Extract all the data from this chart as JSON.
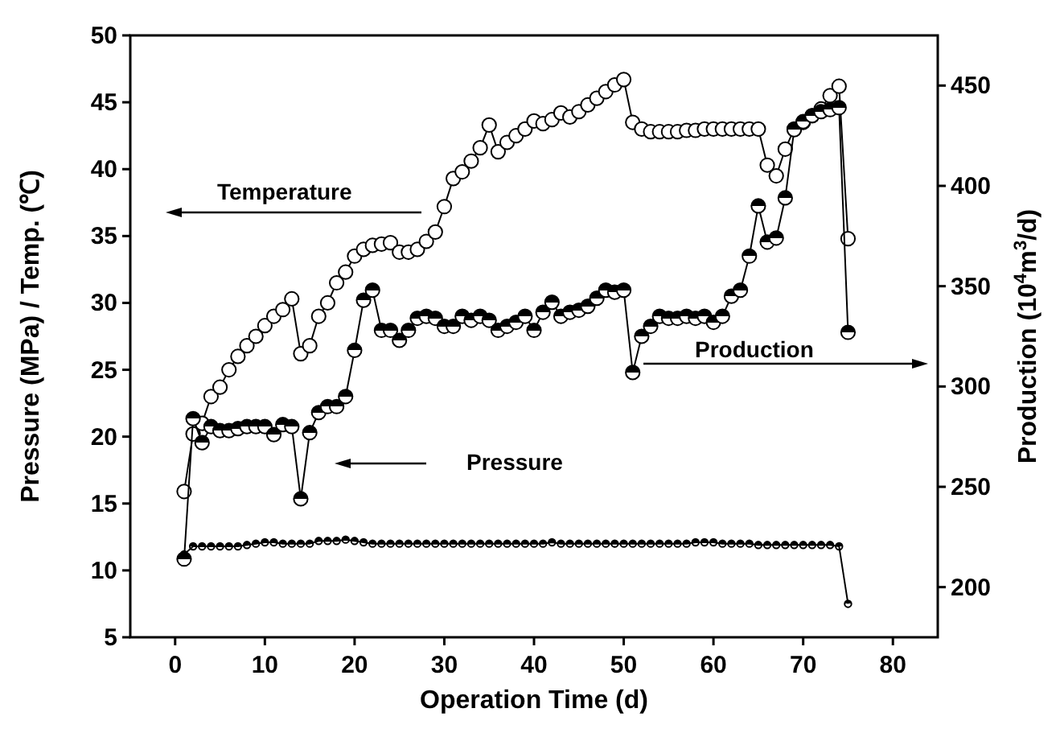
{
  "chart_data": {
    "type": "line",
    "xlabel": "Operation Time (d)",
    "ylabel": "Pressure (MPa) / Temp. (℃)",
    "y2label": "Production (10$^{4}$m$^{3}$/d)",
    "x": [
      1,
      2,
      3,
      4,
      5,
      6,
      7,
      8,
      9,
      10,
      11,
      12,
      13,
      14,
      15,
      16,
      17,
      18,
      19,
      20,
      21,
      22,
      23,
      24,
      25,
      26,
      27,
      28,
      29,
      30,
      31,
      32,
      33,
      34,
      35,
      36,
      37,
      38,
      39,
      40,
      41,
      42,
      43,
      44,
      45,
      46,
      47,
      48,
      49,
      50,
      51,
      52,
      53,
      54,
      55,
      56,
      57,
      58,
      59,
      60,
      61,
      62,
      63,
      64,
      65,
      66,
      67,
      68,
      69,
      70,
      71,
      72,
      73,
      74,
      75
    ],
    "series": [
      {
        "color": "#000000",
        "values": [
          15.9,
          20.2,
          21,
          23,
          23.7,
          25,
          26,
          26.8,
          27.5,
          28.3,
          29,
          29.5,
          30.3,
          26.2,
          26.8,
          29,
          30,
          31.5,
          32.3,
          33.5,
          34,
          34.3,
          34.4,
          34.5,
          33.8,
          33.8,
          34,
          34.6,
          35.3,
          37.2,
          39.3,
          39.8,
          40.6,
          41.6,
          43.3,
          41.3,
          42,
          42.5,
          43,
          43.6,
          43.4,
          43.7,
          44.2,
          43.9,
          44.3,
          44.8,
          45.3,
          45.8,
          46.3,
          46.7,
          43.5,
          43,
          42.8,
          42.8,
          42.8,
          42.8,
          42.9,
          42.9,
          43,
          43,
          43,
          43,
          43,
          43,
          43,
          40.3,
          39.5,
          41.5,
          43,
          43.5,
          44,
          44.5,
          45.5,
          46.2,
          34.8
        ]
      },
      {
        "color": "#000000",
        "values": [
          11.2,
          11.8,
          11.8,
          11.8,
          11.8,
          11.8,
          11.8,
          11.9,
          12,
          12.1,
          12.1,
          12,
          12,
          12,
          12,
          12.2,
          12.2,
          12.2,
          12.3,
          12.2,
          12.1,
          12,
          12,
          12,
          12,
          12,
          12,
          12,
          12,
          12,
          12,
          12,
          12,
          12,
          12,
          12,
          12,
          12,
          12,
          12,
          12,
          12.1,
          12,
          12,
          12,
          12,
          12,
          12,
          12,
          12,
          12,
          12,
          12,
          12,
          12,
          12,
          12,
          12.1,
          12.1,
          12.1,
          12,
          12,
          12,
          12,
          11.9,
          11.9,
          11.9,
          11.9,
          11.9,
          11.9,
          11.9,
          11.9,
          11.9,
          11.8,
          7.5
        ]
      },
      {
        "axis": "y2",
        "color": "#000000",
        "values": [
          214,
          284,
          272,
          280,
          278,
          278,
          279,
          280,
          280,
          280,
          276,
          281,
          280,
          244,
          277,
          287,
          290,
          290,
          295,
          318,
          343,
          348,
          328,
          328,
          323,
          328,
          334,
          335,
          334,
          330,
          330,
          335,
          333,
          335,
          333,
          328,
          330,
          332,
          335,
          328,
          337,
          342,
          335,
          337,
          338,
          340,
          344,
          348,
          347,
          348,
          307,
          325,
          330,
          335,
          334,
          334,
          335,
          334,
          335,
          332,
          335,
          345,
          348,
          365,
          390,
          372,
          374,
          394,
          428,
          432,
          435,
          437,
          438,
          439,
          327
        ]
      }
    ],
    "xlim": [
      -5,
      85
    ],
    "xticks": [
      0,
      10,
      20,
      30,
      40,
      50,
      60,
      70,
      80
    ],
    "ylim": [
      5,
      50
    ],
    "yticks": [
      5,
      10,
      15,
      20,
      25,
      30,
      35,
      40,
      45,
      50
    ],
    "y2lim": [
      175,
      475
    ],
    "y2ticks": [
      200,
      250,
      300,
      350,
      400,
      450
    ],
    "marker": "circle",
    "grid": false,
    "annotations": [
      "Temperature",
      "Pressure",
      "Production"
    ]
  }
}
